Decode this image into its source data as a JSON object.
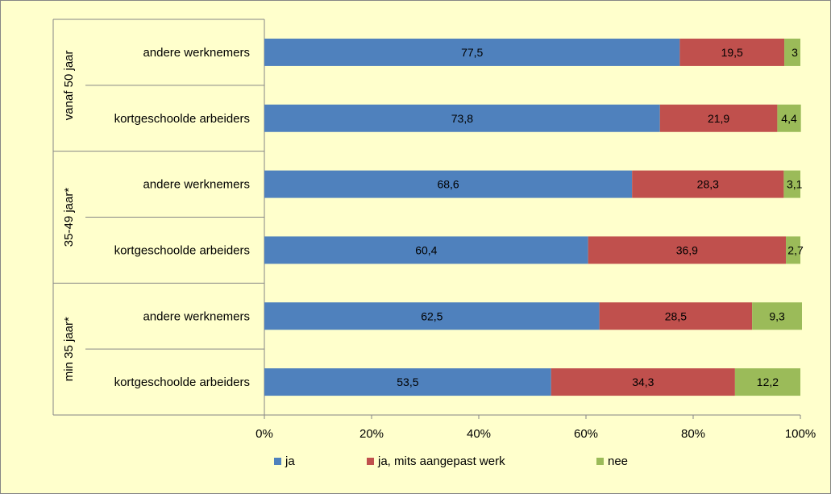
{
  "chart_data": {
    "type": "bar",
    "orientation": "horizontal",
    "stacked": "percent",
    "title": "",
    "xlabel": "",
    "ylabel": "",
    "xlim": [
      0,
      100
    ],
    "x_ticks": [
      "0%",
      "20%",
      "40%",
      "60%",
      "80%",
      "100%"
    ],
    "x_tick_values": [
      0,
      20,
      40,
      60,
      80,
      100
    ],
    "legend_position": "bottom",
    "grid": false,
    "plot_background": "#FFFFCC",
    "groups": [
      {
        "label": "vanaf 50 jaar"
      },
      {
        "label": "35-49 jaar*"
      },
      {
        "label": "min 35 jaar*"
      }
    ],
    "categories": [
      "andere werknemers",
      "kortgeschoolde arbeiders",
      "andere werknemers",
      "kortgeschoolde arbeiders",
      "andere werknemers",
      "kortgeschoolde arbeiders"
    ],
    "category_group": [
      0,
      0,
      1,
      1,
      2,
      2
    ],
    "series": [
      {
        "name": "ja",
        "color": "#4F81BD",
        "values": [
          77.5,
          73.8,
          68.6,
          60.4,
          62.5,
          53.5
        ],
        "labels": [
          "77,5",
          "73,8",
          "68,6",
          "60,4",
          "62,5",
          "53,5"
        ]
      },
      {
        "name": "ja, mits aangepast werk",
        "color": "#C0504D",
        "values": [
          19.5,
          21.9,
          28.3,
          36.9,
          28.5,
          34.3
        ],
        "labels": [
          "19,5",
          "21,9",
          "28,3",
          "36,9",
          "28,5",
          "34,3"
        ]
      },
      {
        "name": "nee",
        "color": "#9BBB59",
        "values": [
          3,
          4.4,
          3.1,
          2.7,
          9.3,
          12.2
        ],
        "labels": [
          "3",
          "4,4",
          "3,1",
          "2,7",
          "9,3",
          "12,2"
        ]
      }
    ]
  }
}
